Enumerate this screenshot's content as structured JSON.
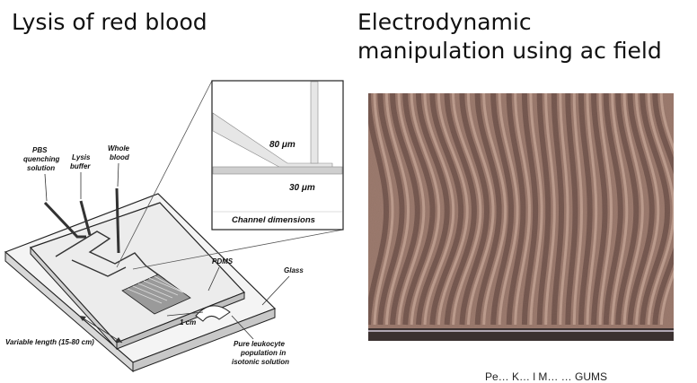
{
  "panels": {
    "left_title": "Lysis of red blood",
    "right_title_line1": "Electrodynamic",
    "right_title_line2": "manipulation using ac field"
  },
  "diagram": {
    "labels": {
      "pbs_1": "PBS",
      "pbs_2": "quenching",
      "pbs_3": "solution",
      "lysis_1": "Lysis",
      "lysis_2": "buffer",
      "whole_1": "Whole",
      "whole_2": "blood",
      "pdms": "PDMS",
      "glass": "Glass",
      "one_cm": "1 cm",
      "variable_length": "Variable length (15-80 cm)",
      "pure_1": "Pure leukocyte",
      "pure_2": "population in",
      "pure_3": "isotonic solution"
    },
    "inset": {
      "width_80": "80 μm",
      "width_30": "30 μm",
      "caption": "Channel dimensions"
    }
  },
  "photo": {
    "colors": {
      "band_dark": "#4a2f2c",
      "band_light": "#c9a89a",
      "base": "#8c6a60"
    }
  },
  "credit": "Pe… K… l M… … GUMS"
}
